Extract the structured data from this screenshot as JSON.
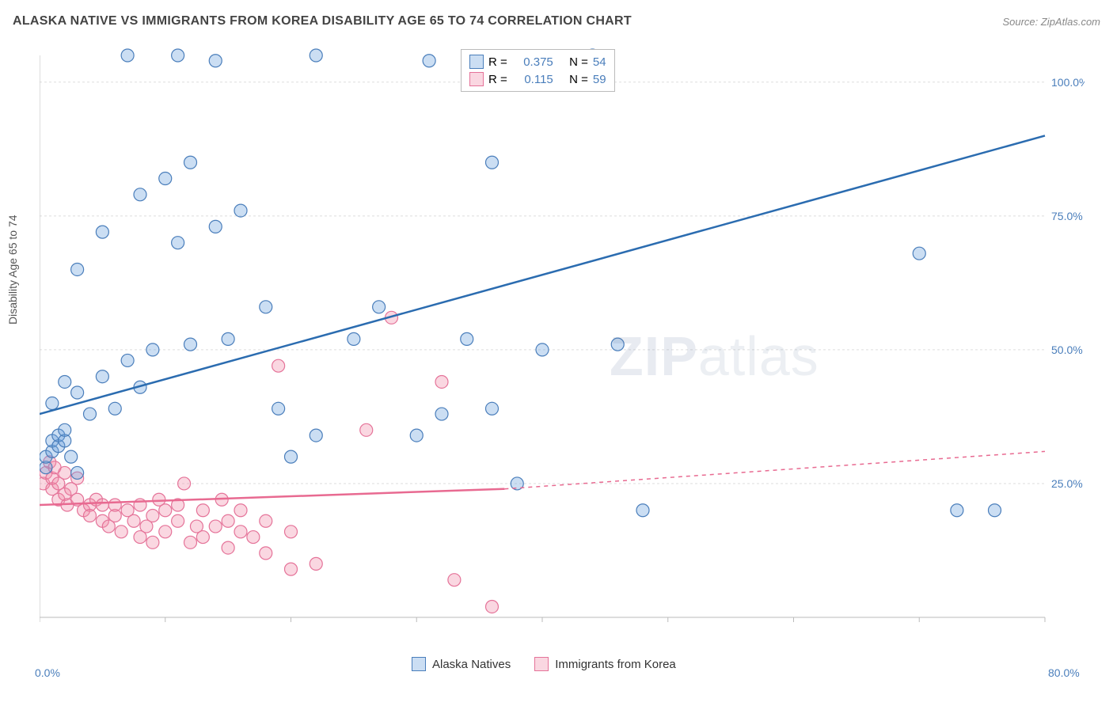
{
  "title": "ALASKA NATIVE VS IMMIGRANTS FROM KOREA DISABILITY AGE 65 TO 74 CORRELATION CHART",
  "source": "Source: ZipAtlas.com",
  "y_axis_label": "Disability Age 65 to 74",
  "watermark_bold": "ZIP",
  "watermark_light": "atlas",
  "chart": {
    "type": "scatter",
    "xlim": [
      0,
      80
    ],
    "ylim": [
      0,
      105
    ],
    "x_ticks": [
      0,
      10,
      20,
      30,
      40,
      50,
      60,
      70,
      80
    ],
    "x_tick_labels": {
      "0": "0.0%",
      "80": "80.0%"
    },
    "y_gridlines": [
      25,
      50,
      75,
      100
    ],
    "y_tick_labels": {
      "25": "25.0%",
      "50": "50.0%",
      "75": "75.0%",
      "100": "100.0%"
    },
    "background_color": "#ffffff",
    "grid_color": "#dddddd",
    "axis_color": "#bbbbbb",
    "point_radius": 8,
    "point_stroke_width": 1.2,
    "line_width": 2.5,
    "series": [
      {
        "name": "Alaska Natives",
        "fill": "rgba(106,160,220,0.35)",
        "stroke": "#4a7ebb",
        "line_color": "#2b6cb0",
        "line_dash": "",
        "R": "0.375",
        "N": "54",
        "regression": {
          "x1": 0,
          "y1": 38,
          "x2": 80,
          "y2": 90
        },
        "points": [
          [
            0.5,
            28
          ],
          [
            0.5,
            30
          ],
          [
            1,
            31
          ],
          [
            1,
            33
          ],
          [
            1.5,
            32
          ],
          [
            1.5,
            34
          ],
          [
            2,
            33
          ],
          [
            2,
            35
          ],
          [
            2.5,
            30
          ],
          [
            3,
            27
          ],
          [
            1,
            40
          ],
          [
            2,
            44
          ],
          [
            3,
            42
          ],
          [
            4,
            38
          ],
          [
            5,
            45
          ],
          [
            6,
            39
          ],
          [
            7,
            48
          ],
          [
            8,
            43
          ],
          [
            9,
            50
          ],
          [
            3,
            65
          ],
          [
            5,
            72
          ],
          [
            8,
            79
          ],
          [
            10,
            82
          ],
          [
            12,
            85
          ],
          [
            7,
            105
          ],
          [
            11,
            105
          ],
          [
            14,
            104
          ],
          [
            22,
            105
          ],
          [
            31,
            104
          ],
          [
            41,
            103
          ],
          [
            11,
            70
          ],
          [
            14,
            73
          ],
          [
            16,
            76
          ],
          [
            12,
            51
          ],
          [
            15,
            52
          ],
          [
            18,
            58
          ],
          [
            19,
            39
          ],
          [
            20,
            30
          ],
          [
            22,
            34
          ],
          [
            25,
            52
          ],
          [
            27,
            58
          ],
          [
            30,
            34
          ],
          [
            32,
            38
          ],
          [
            36,
            39
          ],
          [
            34,
            52
          ],
          [
            36,
            85
          ],
          [
            38,
            25
          ],
          [
            40,
            50
          ],
          [
            44,
            105
          ],
          [
            46,
            51
          ],
          [
            48,
            20
          ],
          [
            70,
            68
          ],
          [
            73,
            20
          ],
          [
            76,
            20
          ]
        ]
      },
      {
        "name": "Immigrants from Korea",
        "fill": "rgba(240,140,170,0.35)",
        "stroke": "#e57399",
        "line_color": "#e86a91",
        "line_dash": "",
        "line_dash_ext": "5,5",
        "R": "0.115",
        "N": "59",
        "regression": {
          "x1": 0,
          "y1": 21,
          "x2": 37,
          "y2": 24
        },
        "regression_ext": {
          "x1": 37,
          "y1": 24,
          "x2": 80,
          "y2": 31
        },
        "points": [
          [
            0.3,
            25
          ],
          [
            0.5,
            27
          ],
          [
            0.8,
            29
          ],
          [
            1,
            24
          ],
          [
            1,
            26
          ],
          [
            1.2,
            28
          ],
          [
            1.5,
            22
          ],
          [
            1.5,
            25
          ],
          [
            2,
            23
          ],
          [
            2,
            27
          ],
          [
            2.2,
            21
          ],
          [
            2.5,
            24
          ],
          [
            3,
            22
          ],
          [
            3,
            26
          ],
          [
            3.5,
            20
          ],
          [
            4,
            21
          ],
          [
            4,
            19
          ],
          [
            4.5,
            22
          ],
          [
            5,
            18
          ],
          [
            5,
            21
          ],
          [
            5.5,
            17
          ],
          [
            6,
            19
          ],
          [
            6,
            21
          ],
          [
            6.5,
            16
          ],
          [
            7,
            20
          ],
          [
            7.5,
            18
          ],
          [
            8,
            15
          ],
          [
            8,
            21
          ],
          [
            8.5,
            17
          ],
          [
            9,
            19
          ],
          [
            9,
            14
          ],
          [
            9.5,
            22
          ],
          [
            10,
            20
          ],
          [
            10,
            16
          ],
          [
            11,
            18
          ],
          [
            11,
            21
          ],
          [
            11.5,
            25
          ],
          [
            12,
            14
          ],
          [
            12.5,
            17
          ],
          [
            13,
            20
          ],
          [
            13,
            15
          ],
          [
            14,
            17
          ],
          [
            14.5,
            22
          ],
          [
            15,
            13
          ],
          [
            15,
            18
          ],
          [
            16,
            16
          ],
          [
            16,
            20
          ],
          [
            17,
            15
          ],
          [
            18,
            12
          ],
          [
            18,
            18
          ],
          [
            19,
            47
          ],
          [
            20,
            9
          ],
          [
            20,
            16
          ],
          [
            22,
            10
          ],
          [
            26,
            35
          ],
          [
            28,
            56
          ],
          [
            32,
            44
          ],
          [
            33,
            7
          ],
          [
            36,
            2
          ]
        ]
      }
    ]
  },
  "legend_stats_labels": {
    "R": "R =",
    "N": "N ="
  },
  "bottom_legend": [
    "Alaska Natives",
    "Immigrants from Korea"
  ],
  "colors": {
    "tick_label": "#4a7ebb",
    "stat_value": "#4a7ebb",
    "stat_label": "#333333"
  }
}
